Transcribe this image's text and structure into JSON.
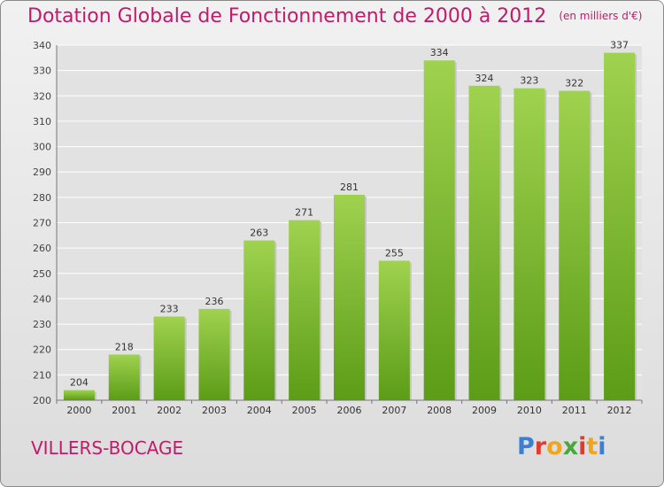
{
  "header": {
    "title": "Dotation Globale de Fonctionnement de 2000 à 2012",
    "unit": "(en milliers d'€)"
  },
  "footer": {
    "place": "VILLERS-BOCAGE",
    "brand": "Proxiti",
    "brand_colors": [
      "#3b7fd4",
      "#e23b2e",
      "#f2a51a",
      "#49a83a",
      "#e23b2e",
      "#f2a51a",
      "#3b7fd4"
    ]
  },
  "colors": {
    "bar_top": "#9fd24f",
    "bar_bottom": "#5c9c17",
    "title": "#c21a6b",
    "grid": "#ffffff"
  },
  "chart_data": {
    "type": "bar",
    "categories": [
      "2000",
      "2001",
      "2002",
      "2003",
      "2004",
      "2005",
      "2006",
      "2007",
      "2008",
      "2009",
      "2010",
      "2011",
      "2012"
    ],
    "values": [
      204,
      218,
      233,
      236,
      263,
      271,
      281,
      255,
      334,
      324,
      323,
      322,
      337
    ],
    "ylim": [
      200,
      340
    ],
    "yticks": [
      200,
      210,
      220,
      230,
      240,
      250,
      260,
      270,
      280,
      290,
      300,
      310,
      320,
      330,
      340
    ],
    "grid": true,
    "data_labels": true
  }
}
